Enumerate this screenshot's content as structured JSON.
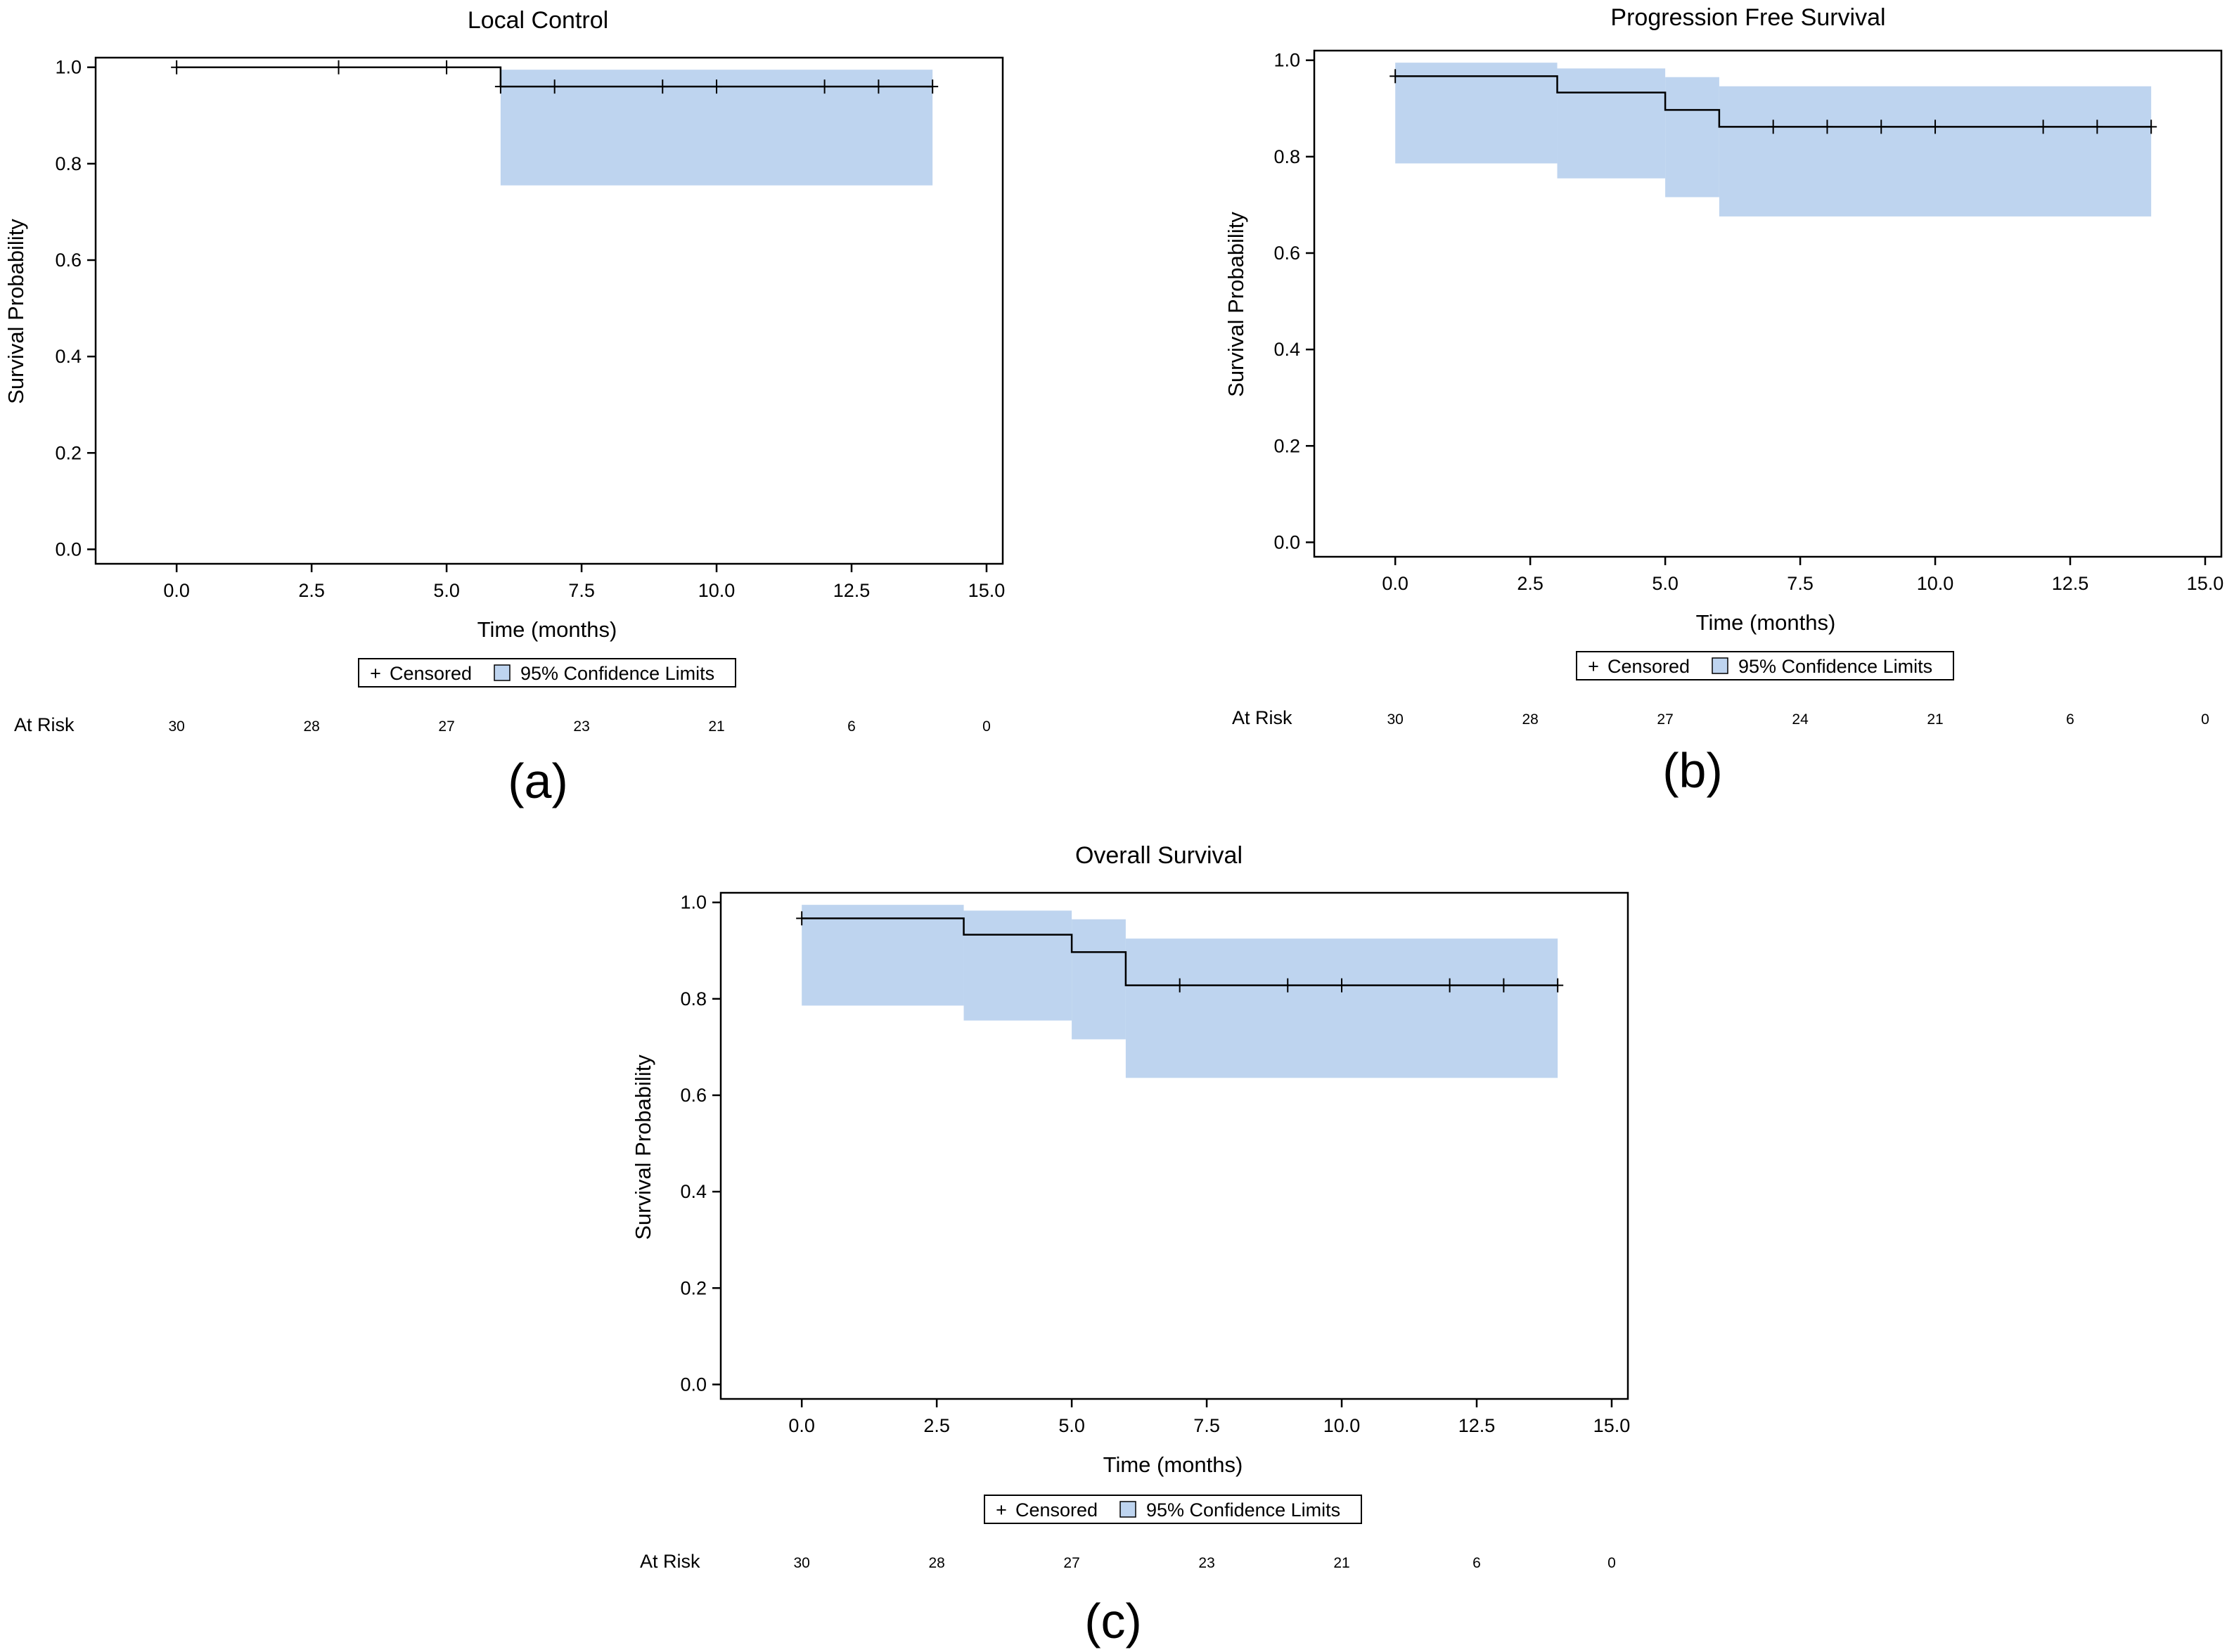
{
  "legend": {
    "censored_label": "Censored",
    "ci_label": "95% Confidence Limits",
    "censored_symbol": "+"
  },
  "colors": {
    "ci_fill": "#bed4ef",
    "line": "#000000"
  },
  "chart_data": [
    {
      "type": "line",
      "title": "Local Control",
      "panel_label": "(a)",
      "xlabel": "Time (months)",
      "ylabel": "Survival Probability",
      "xlim": [
        -1.5,
        15.3
      ],
      "ylim": [
        -0.03,
        1.02
      ],
      "xticks": [
        0,
        2.5,
        5,
        7.5,
        10,
        12.5,
        15
      ],
      "xtick_labels": [
        "0.0",
        "2.5",
        "5.0",
        "7.5",
        "10.0",
        "12.5",
        "15.0"
      ],
      "yticks": [
        0,
        0.2,
        0.4,
        0.6,
        0.8,
        1
      ],
      "ytick_labels": [
        "0.0",
        "0.2",
        "0.4",
        "0.6",
        "0.8",
        "1.0"
      ],
      "grid": false,
      "legend_position": "bottom",
      "survival": {
        "x": [
          0,
          6,
          14
        ],
        "y": [
          1.0,
          0.96,
          0.96
        ]
      },
      "ci": [
        {
          "x0": 6,
          "x1": 14,
          "lower": 0.755,
          "upper": 0.995
        }
      ],
      "censored": [
        {
          "x": 0,
          "y": 1.0
        },
        {
          "x": 3,
          "y": 1.0
        },
        {
          "x": 5,
          "y": 1.0
        },
        {
          "x": 6,
          "y": 0.96
        },
        {
          "x": 7,
          "y": 0.96
        },
        {
          "x": 9,
          "y": 0.96
        },
        {
          "x": 10,
          "y": 0.96
        },
        {
          "x": 12,
          "y": 0.96
        },
        {
          "x": 13,
          "y": 0.96
        },
        {
          "x": 14,
          "y": 0.96
        }
      ],
      "at_risk_label": "At Risk",
      "at_risk": [
        {
          "x": 0,
          "n": "30"
        },
        {
          "x": 2.5,
          "n": "28"
        },
        {
          "x": 5,
          "n": "27"
        },
        {
          "x": 7.5,
          "n": "23"
        },
        {
          "x": 10,
          "n": "21"
        },
        {
          "x": 12.5,
          "n": "6"
        },
        {
          "x": 15,
          "n": "0"
        }
      ]
    },
    {
      "type": "line",
      "title": "Progression Free Survival",
      "panel_label": "(b)",
      "xlabel": "Time (months)",
      "ylabel": "Survival Probability",
      "xlim": [
        -1.5,
        15.3
      ],
      "ylim": [
        -0.03,
        1.02
      ],
      "xticks": [
        0,
        2.5,
        5,
        7.5,
        10,
        12.5,
        15
      ],
      "xtick_labels": [
        "0.0",
        "2.5",
        "5.0",
        "7.5",
        "10.0",
        "12.5",
        "15.0"
      ],
      "yticks": [
        0,
        0.2,
        0.4,
        0.6,
        0.8,
        1
      ],
      "ytick_labels": [
        "0.0",
        "0.2",
        "0.4",
        "0.6",
        "0.8",
        "1.0"
      ],
      "grid": false,
      "legend_position": "bottom",
      "survival": {
        "x": [
          0,
          3,
          5,
          6,
          14
        ],
        "y": [
          0.967,
          0.933,
          0.897,
          0.862,
          0.862
        ]
      },
      "ci": [
        {
          "x0": 0,
          "x1": 3,
          "lower": 0.786,
          "upper": 0.995
        },
        {
          "x0": 3,
          "x1": 5,
          "lower": 0.755,
          "upper": 0.983
        },
        {
          "x0": 5,
          "x1": 6,
          "lower": 0.716,
          "upper": 0.965
        },
        {
          "x0": 6,
          "x1": 14,
          "lower": 0.676,
          "upper": 0.946
        }
      ],
      "censored": [
        {
          "x": 0,
          "y": 0.967
        },
        {
          "x": 7,
          "y": 0.862
        },
        {
          "x": 8,
          "y": 0.862
        },
        {
          "x": 9,
          "y": 0.862
        },
        {
          "x": 10,
          "y": 0.862
        },
        {
          "x": 12,
          "y": 0.862
        },
        {
          "x": 13,
          "y": 0.862
        },
        {
          "x": 14,
          "y": 0.862
        }
      ],
      "at_risk_label": "At Risk",
      "at_risk": [
        {
          "x": 0,
          "n": "30"
        },
        {
          "x": 2.5,
          "n": "28"
        },
        {
          "x": 5,
          "n": "27"
        },
        {
          "x": 7.5,
          "n": "24"
        },
        {
          "x": 10,
          "n": "21"
        },
        {
          "x": 12.5,
          "n": "6"
        },
        {
          "x": 15,
          "n": "0"
        }
      ]
    },
    {
      "type": "line",
      "title": "Overall Survival",
      "panel_label": "(c)",
      "xlabel": "Time (months)",
      "ylabel": "Survival Probability",
      "xlim": [
        -1.5,
        15.3
      ],
      "ylim": [
        -0.03,
        1.02
      ],
      "xticks": [
        0,
        2.5,
        5,
        7.5,
        10,
        12.5,
        15
      ],
      "xtick_labels": [
        "0.0",
        "2.5",
        "5.0",
        "7.5",
        "10.0",
        "12.5",
        "15.0"
      ],
      "yticks": [
        0,
        0.2,
        0.4,
        0.6,
        0.8,
        1
      ],
      "ytick_labels": [
        "0.0",
        "0.2",
        "0.4",
        "0.6",
        "0.8",
        "1.0"
      ],
      "grid": false,
      "legend_position": "bottom",
      "survival": {
        "x": [
          0,
          3,
          5,
          6,
          14
        ],
        "y": [
          0.967,
          0.933,
          0.897,
          0.828,
          0.828
        ]
      },
      "ci": [
        {
          "x0": 0,
          "x1": 3,
          "lower": 0.786,
          "upper": 0.995
        },
        {
          "x0": 3,
          "x1": 5,
          "lower": 0.755,
          "upper": 0.983
        },
        {
          "x0": 5,
          "x1": 6,
          "lower": 0.716,
          "upper": 0.965
        },
        {
          "x0": 6,
          "x1": 14,
          "lower": 0.636,
          "upper": 0.925
        }
      ],
      "censored": [
        {
          "x": 0,
          "y": 0.967
        },
        {
          "x": 7,
          "y": 0.828
        },
        {
          "x": 9,
          "y": 0.828
        },
        {
          "x": 10,
          "y": 0.828
        },
        {
          "x": 12,
          "y": 0.828
        },
        {
          "x": 13,
          "y": 0.828
        },
        {
          "x": 14,
          "y": 0.828
        }
      ],
      "at_risk_label": "At Risk",
      "at_risk": [
        {
          "x": 0,
          "n": "30"
        },
        {
          "x": 2.5,
          "n": "28"
        },
        {
          "x": 5,
          "n": "27"
        },
        {
          "x": 7.5,
          "n": "23"
        },
        {
          "x": 10,
          "n": "21"
        },
        {
          "x": 12.5,
          "n": "6"
        },
        {
          "x": 15,
          "n": "0"
        }
      ]
    }
  ]
}
